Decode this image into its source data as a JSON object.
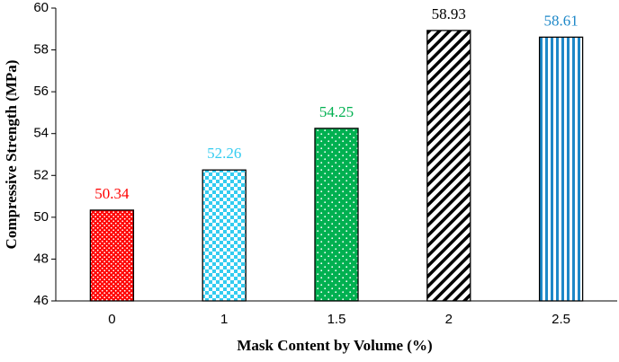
{
  "chart_data": {
    "type": "bar",
    "x_label": "Mask Content by Volume (%)",
    "y_label": "Compressive Strength (MPa)",
    "categories": [
      "0",
      "1",
      "1.5",
      "2",
      "2.5"
    ],
    "values": [
      50.34,
      52.26,
      54.25,
      58.93,
      58.61
    ],
    "colors": [
      "#ff0000",
      "#33ccf0",
      "#00b050",
      "#000000",
      "#1e88c8"
    ],
    "patterns": [
      "dots",
      "checker",
      "dots",
      "diagonal",
      "vertical"
    ],
    "ylim": [
      46,
      60
    ],
    "yticks": [
      46,
      48,
      50,
      52,
      54,
      56,
      58,
      60
    ],
    "grid": false
  }
}
